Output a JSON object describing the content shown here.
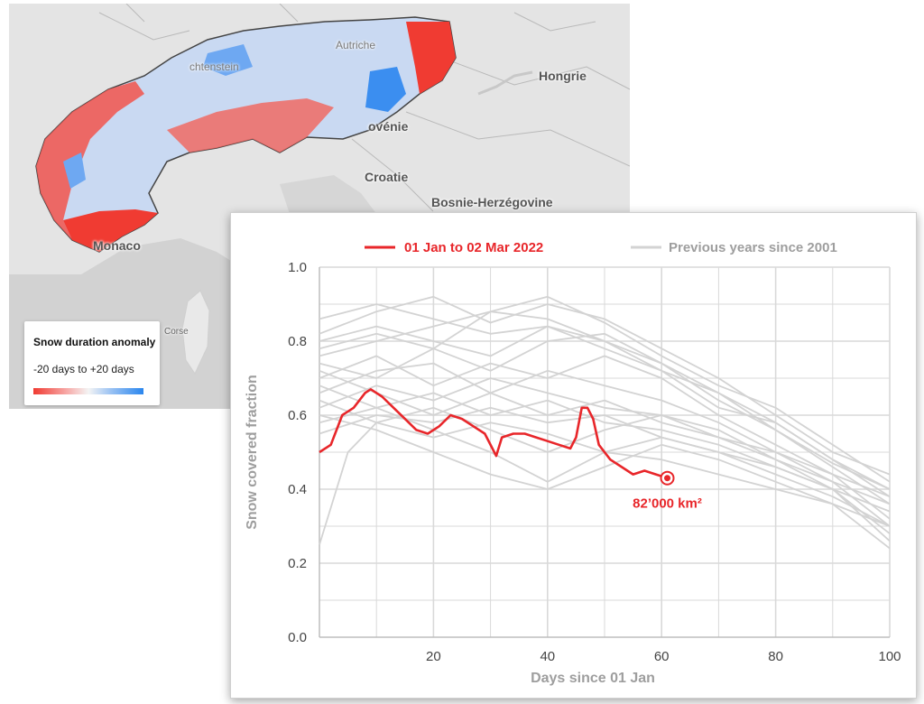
{
  "map": {
    "labels": {
      "hongrie": "Hongrie",
      "slovenie": "ovénie",
      "croatie": "Croatie",
      "bosnie": "Bosnie-Herzégovine",
      "monaco": "Monaco",
      "corse": "Corse",
      "liechtenstein": "chtenstein",
      "autriche": "Autriche"
    },
    "legend": {
      "title": "Snow duration anomaly",
      "range": "-20 days to +20 days"
    }
  },
  "colors": {
    "current_series": "#e8262a",
    "previous_series": "#d3d3d3",
    "grid": "#d9d9d9",
    "anomaly_negative": "#f03b32",
    "anomaly_positive": "#2a86ee"
  },
  "chart_data": {
    "type": "line",
    "xlabel": "Days since 01 Jan",
    "ylabel": "Snow covered fraction",
    "xlim": [
      0,
      100
    ],
    "ylim": [
      0,
      1.0
    ],
    "x_ticks": [
      20,
      40,
      60,
      80,
      100
    ],
    "y_ticks": [
      0.0,
      0.2,
      0.4,
      0.6,
      0.8,
      1.0
    ],
    "grid": true,
    "legend_position": "top",
    "series": [
      {
        "name": "01 Jan to 02 Mar 2022",
        "color": "#e8262a",
        "x": [
          0,
          2,
          4,
          6,
          8,
          9,
          11,
          13,
          15,
          17,
          19,
          21,
          23,
          25,
          27,
          29,
          31,
          32,
          34,
          36,
          38,
          40,
          42,
          44,
          45,
          46,
          47,
          48,
          49,
          51,
          53,
          55,
          57,
          59,
          61
        ],
        "y": [
          0.5,
          0.52,
          0.6,
          0.62,
          0.66,
          0.67,
          0.65,
          0.62,
          0.59,
          0.56,
          0.55,
          0.57,
          0.6,
          0.59,
          0.57,
          0.55,
          0.49,
          0.54,
          0.55,
          0.55,
          0.54,
          0.53,
          0.52,
          0.51,
          0.54,
          0.62,
          0.62,
          0.59,
          0.52,
          0.48,
          0.46,
          0.44,
          0.45,
          0.44,
          0.43
        ]
      },
      {
        "name": "Previous years since 2001",
        "color": "#d3d3d3",
        "lines": [
          {
            "x": [
              0,
              10,
              20,
              30,
              40,
              50,
              60,
              70,
              80,
              90,
              100
            ],
            "y": [
              0.86,
              0.9,
              0.86,
              0.82,
              0.84,
              0.8,
              0.72,
              0.66,
              0.56,
              0.47,
              0.4
            ]
          },
          {
            "x": [
              0,
              10,
              20,
              30,
              40,
              50,
              60,
              70,
              80,
              90,
              100
            ],
            "y": [
              0.82,
              0.88,
              0.92,
              0.85,
              0.9,
              0.86,
              0.78,
              0.7,
              0.6,
              0.5,
              0.44
            ]
          },
          {
            "x": [
              0,
              10,
              20,
              30,
              40,
              50,
              60,
              70,
              80,
              90,
              100
            ],
            "y": [
              0.78,
              0.82,
              0.78,
              0.88,
              0.92,
              0.85,
              0.76,
              0.68,
              0.62,
              0.52,
              0.42
            ]
          },
          {
            "x": [
              0,
              10,
              20,
              30,
              40,
              50,
              60,
              70,
              80,
              90,
              100
            ],
            "y": [
              0.74,
              0.7,
              0.78,
              0.72,
              0.8,
              0.82,
              0.74,
              0.64,
              0.56,
              0.46,
              0.36
            ]
          },
          {
            "x": [
              0,
              10,
              20,
              30,
              40,
              50,
              60,
              70,
              80,
              90,
              100
            ],
            "y": [
              0.7,
              0.76,
              0.68,
              0.74,
              0.7,
              0.76,
              0.7,
              0.6,
              0.52,
              0.44,
              0.32
            ]
          },
          {
            "x": [
              0,
              10,
              20,
              30,
              40,
              50,
              60,
              70,
              80,
              90,
              100
            ],
            "y": [
              0.66,
              0.72,
              0.74,
              0.66,
              0.72,
              0.68,
              0.64,
              0.58,
              0.5,
              0.42,
              0.3
            ]
          },
          {
            "x": [
              0,
              10,
              20,
              30,
              40,
              50,
              60,
              70,
              80,
              90,
              100
            ],
            "y": [
              0.62,
              0.68,
              0.64,
              0.7,
              0.66,
              0.62,
              0.6,
              0.56,
              0.48,
              0.4,
              0.28
            ]
          },
          {
            "x": [
              0,
              10,
              20,
              30,
              40,
              50,
              60,
              70,
              80,
              90,
              100
            ],
            "y": [
              0.58,
              0.62,
              0.66,
              0.6,
              0.64,
              0.58,
              0.56,
              0.52,
              0.46,
              0.4,
              0.26
            ]
          },
          {
            "x": [
              0,
              10,
              20,
              30,
              40,
              50,
              60,
              70,
              80,
              90,
              100
            ],
            "y": [
              0.55,
              0.6,
              0.58,
              0.62,
              0.58,
              0.6,
              0.54,
              0.5,
              0.44,
              0.38,
              0.3
            ]
          },
          {
            "x": [
              0,
              5,
              10,
              20,
              30,
              40,
              50,
              60,
              70,
              80,
              90,
              100
            ],
            "y": [
              0.25,
              0.5,
              0.58,
              0.54,
              0.58,
              0.55,
              0.5,
              0.48,
              0.44,
              0.4,
              0.36,
              0.24
            ]
          },
          {
            "x": [
              0,
              10,
              20,
              30,
              40,
              50,
              60,
              70,
              80,
              90,
              100
            ],
            "y": [
              0.68,
              0.62,
              0.56,
              0.5,
              0.42,
              0.5,
              0.54,
              0.5,
              0.46,
              0.4,
              0.34
            ]
          },
          {
            "x": [
              0,
              10,
              20,
              30,
              40,
              50,
              60,
              70,
              80,
              90,
              100
            ],
            "y": [
              0.8,
              0.84,
              0.8,
              0.76,
              0.84,
              0.78,
              0.72,
              0.62,
              0.58,
              0.48,
              0.38
            ]
          },
          {
            "x": [
              0,
              10,
              20,
              30,
              40,
              50,
              60,
              70,
              80,
              90,
              100
            ],
            "y": [
              0.72,
              0.66,
              0.6,
              0.66,
              0.6,
              0.64,
              0.58,
              0.54,
              0.48,
              0.42,
              0.36
            ]
          },
          {
            "x": [
              0,
              10,
              20,
              30,
              40,
              50,
              60,
              70,
              80,
              90,
              100
            ],
            "y": [
              0.6,
              0.56,
              0.5,
              0.44,
              0.4,
              0.46,
              0.52,
              0.48,
              0.42,
              0.36,
              0.3
            ]
          },
          {
            "x": [
              0,
              10,
              20,
              30,
              40,
              50,
              60,
              70,
              80,
              90,
              100
            ],
            "y": [
              0.76,
              0.8,
              0.84,
              0.88,
              0.86,
              0.8,
              0.74,
              0.66,
              0.58,
              0.48,
              0.4
            ]
          },
          {
            "x": [
              0,
              10,
              20,
              30,
              40,
              50,
              60,
              70,
              80,
              90,
              100
            ],
            "y": [
              0.64,
              0.58,
              0.62,
              0.56,
              0.5,
              0.56,
              0.6,
              0.54,
              0.5,
              0.44,
              0.38
            ]
          }
        ]
      }
    ],
    "annotation": {
      "x": 61,
      "y": 0.43,
      "text": "82’000 km²"
    }
  }
}
